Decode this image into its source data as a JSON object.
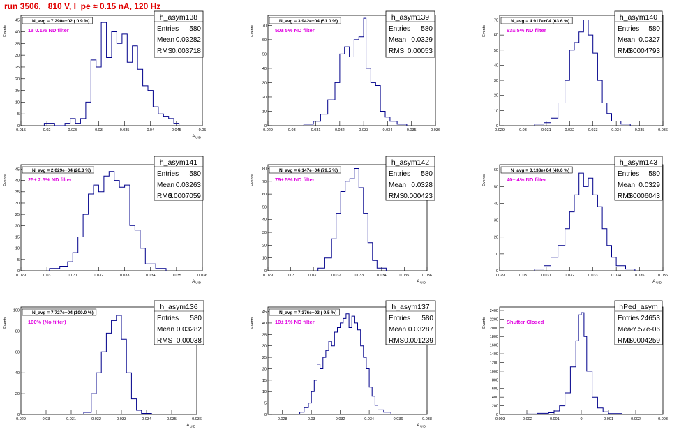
{
  "page_title": "run 3506,   810 V, I_pe ≈ 0.15 nA, 120 Hz",
  "chart_data": [
    {
      "type": "histogram",
      "name": "h_asym138",
      "ylabel": "Events",
      "xlabel": "A_UID",
      "n_avg_label": "N_avg = 7.290e+02 ( 0.9 %)",
      "filter_label": "1± 0.1% ND filter",
      "stats": {
        "entries": "580",
        "mean": "0.03282",
        "rms": "0.003718"
      },
      "xlim": [
        0.015,
        0.05
      ],
      "ylim": [
        0,
        47
      ],
      "xticks": [
        0.015,
        0.02,
        0.025,
        0.03,
        0.035,
        0.04,
        0.045,
        0.05
      ],
      "xtick_labels": [
        "0.015",
        "0.02",
        "0.025",
        "0.03",
        "0.035",
        "0.04",
        "0.045",
        "0.05"
      ],
      "yticks": [
        0,
        5,
        10,
        15,
        20,
        25,
        30,
        35,
        40,
        45
      ],
      "bins": [
        [
          0.0195,
          0.0215,
          1
        ],
        [
          0.0215,
          0.0235,
          0
        ],
        [
          0.0235,
          0.0245,
          1
        ],
        [
          0.0245,
          0.0255,
          3
        ],
        [
          0.0255,
          0.0265,
          1
        ],
        [
          0.0265,
          0.0275,
          3
        ],
        [
          0.0275,
          0.0285,
          10
        ],
        [
          0.0285,
          0.0295,
          28
        ],
        [
          0.0295,
          0.0305,
          25
        ],
        [
          0.0305,
          0.0315,
          44
        ],
        [
          0.0315,
          0.0325,
          29
        ],
        [
          0.0325,
          0.0335,
          40
        ],
        [
          0.0335,
          0.0345,
          35
        ],
        [
          0.0345,
          0.0355,
          39
        ],
        [
          0.0355,
          0.0365,
          27
        ],
        [
          0.0365,
          0.0375,
          34
        ],
        [
          0.0375,
          0.0385,
          24
        ],
        [
          0.0385,
          0.0395,
          17
        ],
        [
          0.0395,
          0.0405,
          15
        ],
        [
          0.0405,
          0.0415,
          8
        ],
        [
          0.0415,
          0.0425,
          5
        ],
        [
          0.0425,
          0.0435,
          4
        ],
        [
          0.0435,
          0.0445,
          3
        ],
        [
          0.0445,
          0.0455,
          1
        ]
      ]
    },
    {
      "type": "histogram",
      "name": "h_asym139",
      "ylabel": "Events",
      "xlabel": "",
      "n_avg_label": "N_avg = 3.942e+04 (51.0 %)",
      "filter_label": "50± 5% ND filter",
      "stats": {
        "entries": "580",
        "mean": "0.0329",
        "rms": "0.00053"
      },
      "xlim": [
        0.029,
        0.036
      ],
      "ylim": [
        0,
        77
      ],
      "xticks": [
        0.029,
        0.03,
        0.031,
        0.032,
        0.033,
        0.034,
        0.035,
        0.036
      ],
      "xtick_labels": [
        "0.029",
        "0.03",
        "0.031",
        "0.032",
        "0.033",
        "0.034",
        "0.035",
        "0.036"
      ],
      "yticks": [
        0,
        10,
        20,
        30,
        40,
        50,
        60,
        70
      ],
      "bins": [
        [
          0.0305,
          0.0309,
          1
        ],
        [
          0.0309,
          0.0312,
          3
        ],
        [
          0.0312,
          0.0315,
          8
        ],
        [
          0.0315,
          0.0318,
          18
        ],
        [
          0.0318,
          0.032,
          30
        ],
        [
          0.032,
          0.0322,
          50
        ],
        [
          0.0322,
          0.0324,
          55
        ],
        [
          0.0324,
          0.0326,
          48
        ],
        [
          0.0326,
          0.0328,
          60
        ],
        [
          0.0328,
          0.033,
          62
        ],
        [
          0.033,
          0.0331,
          75
        ],
        [
          0.0331,
          0.0333,
          40
        ],
        [
          0.0333,
          0.0335,
          30
        ],
        [
          0.0335,
          0.0337,
          28
        ],
        [
          0.0337,
          0.0339,
          10
        ],
        [
          0.0339,
          0.0341,
          6
        ],
        [
          0.0341,
          0.0344,
          3
        ],
        [
          0.0344,
          0.0348,
          1
        ]
      ]
    },
    {
      "type": "histogram",
      "name": "h_asym140",
      "ylabel": "Events",
      "xlabel": "",
      "n_avg_label": "N_avg = 4.917e+04 (63.6 %)",
      "filter_label": "63± 5% ND filter",
      "stats": {
        "entries": "580",
        "mean": "0.0327",
        "rms": "0.0004793"
      },
      "xlim": [
        0.029,
        0.036
      ],
      "ylim": [
        0,
        73
      ],
      "xticks": [
        0.029,
        0.03,
        0.031,
        0.032,
        0.033,
        0.034,
        0.035,
        0.036
      ],
      "xtick_labels": [
        "0.029",
        "0.03",
        "0.031",
        "0.032",
        "0.033",
        "0.034",
        "0.035",
        "0.036"
      ],
      "yticks": [
        0,
        10,
        20,
        30,
        40,
        50,
        60,
        70
      ],
      "bins": [
        [
          0.0305,
          0.0309,
          1
        ],
        [
          0.0309,
          0.0312,
          2
        ],
        [
          0.0312,
          0.0315,
          5
        ],
        [
          0.0315,
          0.0318,
          15
        ],
        [
          0.0318,
          0.032,
          30
        ],
        [
          0.032,
          0.0322,
          50
        ],
        [
          0.0322,
          0.0324,
          55
        ],
        [
          0.0324,
          0.0326,
          62
        ],
        [
          0.0326,
          0.0328,
          70
        ],
        [
          0.0328,
          0.033,
          60
        ],
        [
          0.033,
          0.0332,
          48
        ],
        [
          0.0332,
          0.0334,
          30
        ],
        [
          0.0334,
          0.0336,
          15
        ],
        [
          0.0336,
          0.0338,
          8
        ],
        [
          0.0338,
          0.0342,
          3
        ],
        [
          0.0342,
          0.0346,
          1
        ]
      ]
    },
    {
      "type": "histogram",
      "name": "h_asym141",
      "ylabel": "Events",
      "xlabel": "A_UID",
      "n_avg_label": "N_avg = 2.029e+04 (26.3 %)",
      "filter_label": "25± 2.5% ND filter",
      "stats": {
        "entries": "580",
        "mean": "0.03263",
        "rms": "0.0007059"
      },
      "xlim": [
        0.029,
        0.036
      ],
      "ylim": [
        0,
        47
      ],
      "xticks": [
        0.029,
        0.03,
        0.031,
        0.032,
        0.033,
        0.034,
        0.035,
        0.036
      ],
      "xtick_labels": [
        "0.029",
        "0.03",
        "0.031",
        "0.032",
        "0.033",
        "0.034",
        "0.035",
        "0.036"
      ],
      "yticks": [
        0,
        5,
        10,
        15,
        20,
        25,
        30,
        35,
        40,
        45
      ],
      "bins": [
        [
          0.0301,
          0.0305,
          1
        ],
        [
          0.0305,
          0.0308,
          2
        ],
        [
          0.0308,
          0.031,
          4
        ],
        [
          0.031,
          0.0312,
          8
        ],
        [
          0.0312,
          0.0314,
          15
        ],
        [
          0.0314,
          0.0316,
          25
        ],
        [
          0.0316,
          0.0318,
          34
        ],
        [
          0.0318,
          0.032,
          38
        ],
        [
          0.032,
          0.0322,
          35
        ],
        [
          0.0322,
          0.0324,
          42
        ],
        [
          0.0324,
          0.0326,
          44
        ],
        [
          0.0326,
          0.0328,
          40
        ],
        [
          0.0328,
          0.033,
          37
        ],
        [
          0.033,
          0.0332,
          38
        ],
        [
          0.0332,
          0.0334,
          20
        ],
        [
          0.0334,
          0.0336,
          18
        ],
        [
          0.0336,
          0.0338,
          10
        ],
        [
          0.0338,
          0.0342,
          3
        ],
        [
          0.0342,
          0.0346,
          1
        ]
      ]
    },
    {
      "type": "histogram",
      "name": "h_asym142",
      "ylabel": "Events",
      "xlabel": "A_UID",
      "n_avg_label": "N_avg = 6.147e+04 (79.5 %)",
      "filter_label": "79± 5% ND filter",
      "stats": {
        "entries": "580",
        "mean": "0.0328",
        "rms": "0.000423"
      },
      "xlim": [
        0.029,
        0.036
      ],
      "ylim": [
        0,
        83
      ],
      "xticks": [
        0.029,
        0.03,
        0.031,
        0.032,
        0.033,
        0.034,
        0.035,
        0.036
      ],
      "xtick_labels": [
        "0.029",
        "0.03",
        "0.031",
        "0.032",
        "0.033",
        "0.034",
        "0.035",
        "0.036"
      ],
      "yticks": [
        0,
        10,
        20,
        30,
        40,
        50,
        60,
        70,
        80
      ],
      "bins": [
        [
          0.0312,
          0.0315,
          2
        ],
        [
          0.0315,
          0.0318,
          10
        ],
        [
          0.0318,
          0.032,
          25
        ],
        [
          0.032,
          0.0322,
          45
        ],
        [
          0.0322,
          0.0324,
          62
        ],
        [
          0.0324,
          0.0326,
          70
        ],
        [
          0.0326,
          0.0328,
          72
        ],
        [
          0.0328,
          0.033,
          80
        ],
        [
          0.033,
          0.0332,
          65
        ],
        [
          0.0332,
          0.0334,
          45
        ],
        [
          0.0334,
          0.0336,
          22
        ],
        [
          0.0336,
          0.0338,
          8
        ],
        [
          0.0338,
          0.0342,
          2
        ]
      ]
    },
    {
      "type": "histogram",
      "name": "h_asym143",
      "ylabel": "Events",
      "xlabel": "A_UID",
      "n_avg_label": "N_avg = 3.138e+04 (40.6 %)",
      "filter_label": "40± 4% ND filter",
      "stats": {
        "entries": "580",
        "mean": "0.0329",
        "rms": "0.0006043"
      },
      "xlim": [
        0.029,
        0.036
      ],
      "ylim": [
        0,
        63
      ],
      "xticks": [
        0.029,
        0.03,
        0.031,
        0.032,
        0.033,
        0.034,
        0.035,
        0.036
      ],
      "xtick_labels": [
        "0.029",
        "0.03",
        "0.031",
        "0.032",
        "0.033",
        "0.034",
        "0.035",
        "0.036"
      ],
      "yticks": [
        0,
        10,
        20,
        30,
        40,
        50,
        60
      ],
      "bins": [
        [
          0.0305,
          0.0309,
          1
        ],
        [
          0.0309,
          0.0312,
          3
        ],
        [
          0.0312,
          0.0315,
          8
        ],
        [
          0.0315,
          0.0318,
          15
        ],
        [
          0.0318,
          0.032,
          25
        ],
        [
          0.032,
          0.0322,
          35
        ],
        [
          0.0322,
          0.0324,
          45
        ],
        [
          0.0324,
          0.0326,
          58
        ],
        [
          0.0326,
          0.0328,
          50
        ],
        [
          0.0328,
          0.033,
          55
        ],
        [
          0.033,
          0.0332,
          45
        ],
        [
          0.0332,
          0.0334,
          38
        ],
        [
          0.0334,
          0.0336,
          25
        ],
        [
          0.0336,
          0.0338,
          15
        ],
        [
          0.0338,
          0.034,
          8
        ],
        [
          0.034,
          0.0344,
          3
        ],
        [
          0.0344,
          0.0348,
          1
        ]
      ]
    },
    {
      "type": "histogram",
      "name": "h_asym136",
      "ylabel": "Events",
      "xlabel": "A_UID",
      "n_avg_label": "N_avg = 7.727e+04 (100.0 %)",
      "filter_label": "100% (No filter)",
      "stats": {
        "entries": "580",
        "mean": "0.03282",
        "rms": "0.00038"
      },
      "xlim": [
        0.029,
        0.036
      ],
      "ylim": [
        0,
        103
      ],
      "xticks": [
        0.029,
        0.03,
        0.031,
        0.032,
        0.033,
        0.034,
        0.035,
        0.036
      ],
      "xtick_labels": [
        "0.029",
        "0.03",
        "0.031",
        "0.032",
        "0.033",
        "0.034",
        "0.035",
        "0.036"
      ],
      "yticks": [
        0,
        20,
        40,
        60,
        80,
        100
      ],
      "bins": [
        [
          0.0315,
          0.0318,
          2
        ],
        [
          0.0318,
          0.032,
          20
        ],
        [
          0.032,
          0.0322,
          40
        ],
        [
          0.0322,
          0.0324,
          60
        ],
        [
          0.0324,
          0.0326,
          78
        ],
        [
          0.0326,
          0.0328,
          90
        ],
        [
          0.0328,
          0.033,
          95
        ],
        [
          0.033,
          0.0332,
          72
        ],
        [
          0.0332,
          0.0334,
          40
        ],
        [
          0.0334,
          0.0336,
          15
        ],
        [
          0.0336,
          0.0338,
          4
        ],
        [
          0.0338,
          0.0342,
          1
        ]
      ]
    },
    {
      "type": "histogram",
      "name": "h_asym137",
      "ylabel": "Events",
      "xlabel": "A_UID",
      "n_avg_label": "N_avg = 7.376e+03 ( 9.5 %)",
      "filter_label": "10± 1% ND filter",
      "stats": {
        "entries": "580",
        "mean": "0.03287",
        "rms": "0.001239"
      },
      "xlim": [
        0.027,
        0.038
      ],
      "ylim": [
        0,
        47
      ],
      "xticks": [
        0.028,
        0.03,
        0.032,
        0.034,
        0.036,
        0.038
      ],
      "xtick_labels": [
        "0.028",
        "0.03",
        "0.032",
        "0.034",
        "0.036",
        "0.038"
      ],
      "yticks": [
        0,
        5,
        10,
        15,
        20,
        25,
        30,
        35,
        40,
        45
      ],
      "bins": [
        [
          0.0292,
          0.0295,
          1
        ],
        [
          0.0295,
          0.0298,
          3
        ],
        [
          0.0298,
          0.03,
          5
        ],
        [
          0.03,
          0.0302,
          10
        ],
        [
          0.0302,
          0.0304,
          15
        ],
        [
          0.0304,
          0.0306,
          22
        ],
        [
          0.0306,
          0.0308,
          20
        ],
        [
          0.0308,
          0.031,
          25
        ],
        [
          0.031,
          0.0312,
          28
        ],
        [
          0.0312,
          0.0314,
          32
        ],
        [
          0.0314,
          0.0316,
          30
        ],
        [
          0.0316,
          0.0318,
          36
        ],
        [
          0.0318,
          0.032,
          38
        ],
        [
          0.032,
          0.0322,
          40
        ],
        [
          0.0322,
          0.0324,
          42
        ],
        [
          0.0324,
          0.0326,
          44
        ],
        [
          0.0326,
          0.0328,
          38
        ],
        [
          0.0328,
          0.033,
          43
        ],
        [
          0.033,
          0.0332,
          40
        ],
        [
          0.0332,
          0.0334,
          37
        ],
        [
          0.0334,
          0.0336,
          30
        ],
        [
          0.0336,
          0.0338,
          25
        ],
        [
          0.0338,
          0.034,
          20
        ],
        [
          0.034,
          0.0342,
          12
        ],
        [
          0.0342,
          0.0344,
          8
        ],
        [
          0.0344,
          0.0346,
          4
        ],
        [
          0.0346,
          0.035,
          2
        ],
        [
          0.035,
          0.0355,
          1
        ]
      ]
    },
    {
      "type": "histogram",
      "name": "hPed_asym",
      "ylabel": "Events",
      "xlabel": "",
      "n_avg_label": "",
      "filter_label": "Shutter Closed",
      "stats": {
        "entries": "24653",
        "mean": "-7.57e-06",
        "rms": "0.0004259"
      },
      "xlim": [
        -0.003,
        0.003
      ],
      "ylim": [
        0,
        2480
      ],
      "xticks": [
        -0.003,
        -0.002,
        -0.001,
        0,
        0.001,
        0.002,
        0.003
      ],
      "xtick_labels": [
        "-0.003",
        "-0.002",
        "-0.001",
        "0",
        "0.001",
        "0.002",
        "0.003"
      ],
      "yticks": [
        0,
        200,
        400,
        600,
        800,
        1000,
        1200,
        1400,
        1600,
        1800,
        2000,
        2200,
        2400
      ],
      "bins": [
        [
          -0.002,
          -0.0016,
          10
        ],
        [
          -0.0016,
          -0.0012,
          25
        ],
        [
          -0.0012,
          -0.001,
          40
        ],
        [
          -0.001,
          -0.0008,
          80
        ],
        [
          -0.0008,
          -0.0006,
          200
        ],
        [
          -0.0006,
          -0.0004,
          500
        ],
        [
          -0.0004,
          -0.0002,
          1100
        ],
        [
          -0.0002,
          -0.0001,
          1700
        ],
        [
          -0.0001,
          0,
          2300
        ],
        [
          0,
          0.0001,
          2350
        ],
        [
          0.0001,
          0.0002,
          1800
        ],
        [
          0.0002,
          0.0004,
          1000
        ],
        [
          0.0004,
          0.0006,
          400
        ],
        [
          0.0006,
          0.0008,
          150
        ],
        [
          0.0008,
          0.001,
          60
        ],
        [
          0.001,
          0.0015,
          20
        ],
        [
          0.0015,
          0.002,
          8
        ]
      ]
    }
  ]
}
